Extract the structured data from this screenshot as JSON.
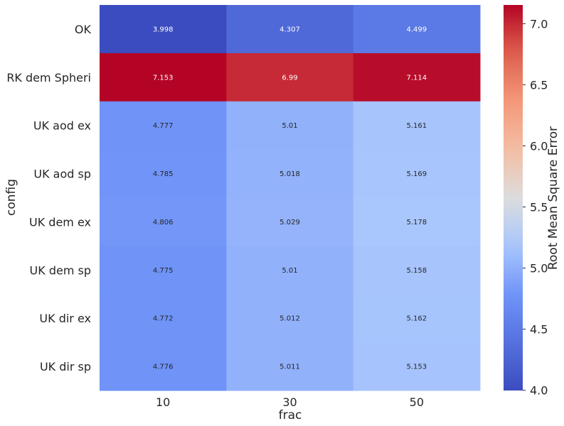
{
  "chart_data": {
    "type": "heatmap",
    "x_categories": [
      "10",
      "30",
      "50"
    ],
    "y_categories": [
      "OK",
      "RK dem Spheri",
      "UK aod ex",
      "UK aod sp",
      "UK dem ex",
      "UK dem sp",
      "UK dir ex",
      "UK dir sp"
    ],
    "values": [
      [
        3.998,
        4.307,
        4.499
      ],
      [
        7.153,
        6.99,
        7.114
      ],
      [
        4.777,
        5.01,
        5.161
      ],
      [
        4.785,
        5.018,
        5.169
      ],
      [
        4.806,
        5.029,
        5.178
      ],
      [
        4.775,
        5.01,
        5.158
      ],
      [
        4.772,
        5.012,
        5.162
      ],
      [
        4.776,
        5.011,
        5.153
      ]
    ],
    "value_labels": [
      [
        "3.998",
        "4.307",
        "4.499"
      ],
      [
        "7.153",
        "6.99",
        "7.114"
      ],
      [
        "4.777",
        "5.01",
        "5.161"
      ],
      [
        "4.785",
        "5.018",
        "5.169"
      ],
      [
        "4.806",
        "5.029",
        "5.178"
      ],
      [
        "4.775",
        "5.01",
        "5.158"
      ],
      [
        "4.772",
        "5.012",
        "5.162"
      ],
      [
        "4.776",
        "5.011",
        "5.153"
      ]
    ],
    "xlabel": "frac",
    "ylabel": "config",
    "colormap": "coolwarm",
    "colorbar": {
      "label": "Root Mean Square Error",
      "range": [
        3.998,
        7.153
      ],
      "ticks": [
        "4.0",
        "4.5",
        "5.0",
        "5.5",
        "6.0",
        "6.5",
        "7.0"
      ],
      "tick_values": [
        4.0,
        4.5,
        5.0,
        5.5,
        6.0,
        6.5,
        7.0
      ],
      "placement": "right"
    },
    "grid": false
  }
}
